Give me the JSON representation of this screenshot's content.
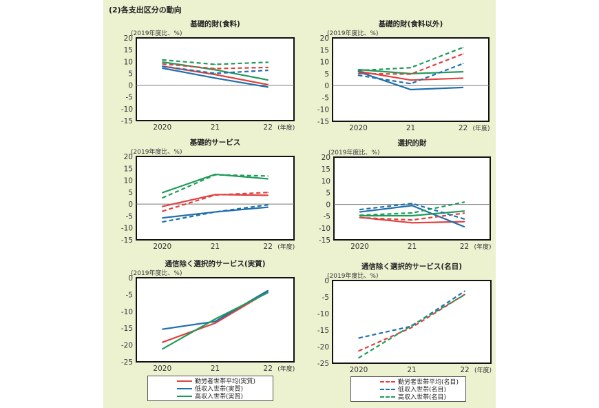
{
  "section_title": "(2)各支出区分の動向",
  "chart_data": [
    {
      "type": "line",
      "title": "基礎的財(食料)",
      "ylabel": "(2019年度比、%)",
      "xlabel": "(年度)",
      "categories": [
        "2020",
        "21",
        "22"
      ],
      "ylim": [
        -15,
        20
      ],
      "yticks": [
        "20",
        "15",
        "10",
        "5",
        "0",
        "-5",
        "-10",
        "-15"
      ],
      "series": [
        {
          "name": "勤労者世帯平均(実質)",
          "color": "#e0423f",
          "dashed": false,
          "values": [
            8.0,
            4.5,
            0.2
          ]
        },
        {
          "name": "低収入世帯(実質)",
          "color": "#1f6fae",
          "dashed": false,
          "values": [
            7.2,
            3.0,
            -0.8
          ]
        },
        {
          "name": "高収入世帯(実質)",
          "color": "#1e9b5a",
          "dashed": false,
          "values": [
            9.8,
            6.5,
            2.2
          ]
        },
        {
          "name": "勤労者世帯平均(名目)",
          "color": "#e0423f",
          "dashed": true,
          "values": [
            9.0,
            7.0,
            7.5
          ]
        },
        {
          "name": "低収入世帯(名目)",
          "color": "#1f6fae",
          "dashed": true,
          "values": [
            8.0,
            5.0,
            6.3
          ]
        },
        {
          "name": "高収入世帯(名目)",
          "color": "#1e9b5a",
          "dashed": true,
          "values": [
            10.7,
            8.8,
            9.7
          ]
        }
      ]
    },
    {
      "type": "line",
      "title": "基礎的財(食料以外)",
      "ylabel": "(2019年度比、%)",
      "xlabel": "(年度)",
      "categories": [
        "2020",
        "21",
        "22"
      ],
      "ylim": [
        -15,
        20
      ],
      "yticks": [
        "20",
        "15",
        "10",
        "5",
        "0",
        "-5",
        "-10",
        "-15"
      ],
      "series": [
        {
          "name": "勤労者世帯平均(実質)",
          "color": "#e0423f",
          "dashed": false,
          "values": [
            6.0,
            2.3,
            3.1
          ]
        },
        {
          "name": "低収入世帯(実質)",
          "color": "#1f6fae",
          "dashed": false,
          "values": [
            5.8,
            -1.7,
            -0.8
          ]
        },
        {
          "name": "高収入世帯(実質)",
          "color": "#1e9b5a",
          "dashed": false,
          "values": [
            6.7,
            5.0,
            5.8
          ]
        },
        {
          "name": "勤労者世帯平均(名目)",
          "color": "#e0423f",
          "dashed": true,
          "values": [
            5.0,
            4.8,
            13.3
          ]
        },
        {
          "name": "低収入世帯(名目)",
          "color": "#1f6fae",
          "dashed": true,
          "values": [
            4.3,
            0.8,
            9.2
          ]
        },
        {
          "name": "高収入世帯(名目)",
          "color": "#1e9b5a",
          "dashed": true,
          "values": [
            6.3,
            7.5,
            16.0
          ]
        }
      ]
    },
    {
      "type": "line",
      "title": "基礎的サービス",
      "ylabel": "(2019年度比、%)",
      "xlabel": "(年度)",
      "categories": [
        "2020",
        "21",
        "22"
      ],
      "ylim": [
        -15,
        20
      ],
      "yticks": [
        "20",
        "15",
        "10",
        "5",
        "0",
        "-5",
        "-10",
        "-15"
      ],
      "series": [
        {
          "name": "勤労者世帯平均(実質)",
          "color": "#e0423f",
          "dashed": false,
          "values": [
            -1.0,
            4.0,
            3.7
          ]
        },
        {
          "name": "低収入世帯(実質)",
          "color": "#1f6fae",
          "dashed": false,
          "values": [
            -5.8,
            -3.3,
            -1.3
          ]
        },
        {
          "name": "高収入世帯(実質)",
          "color": "#1e9b5a",
          "dashed": false,
          "values": [
            4.8,
            12.5,
            10.6
          ]
        },
        {
          "name": "勤労者世帯平均(名目)",
          "color": "#e0423f",
          "dashed": true,
          "values": [
            -3.0,
            3.8,
            4.9
          ]
        },
        {
          "name": "低収入世帯(名目)",
          "color": "#1f6fae",
          "dashed": true,
          "values": [
            -7.5,
            -3.3,
            -0.3
          ]
        },
        {
          "name": "高収入世帯(名目)",
          "color": "#1e9b5a",
          "dashed": true,
          "values": [
            2.6,
            12.3,
            11.8
          ]
        }
      ]
    },
    {
      "type": "line",
      "title": "選択的財",
      "ylabel": "(2019年度比、%)",
      "xlabel": "(年度)",
      "categories": [
        "2020",
        "21",
        "22"
      ],
      "ylim": [
        -15,
        20
      ],
      "yticks": [
        "20",
        "15",
        "10",
        "5",
        "0",
        "-5",
        "-10",
        "-15"
      ],
      "series": [
        {
          "name": "勤労者世帯平均(実質)",
          "color": "#e0423f",
          "dashed": false,
          "values": [
            -5.5,
            -7.8,
            -7.3
          ]
        },
        {
          "name": "低収入世帯(実質)",
          "color": "#1f6fae",
          "dashed": false,
          "values": [
            -3.2,
            -0.5,
            -9.5
          ]
        },
        {
          "name": "高収入世帯(実質)",
          "color": "#1e9b5a",
          "dashed": false,
          "values": [
            -4.8,
            -4.8,
            -2.8
          ]
        },
        {
          "name": "勤労者世帯平均(名目)",
          "color": "#e0423f",
          "dashed": true,
          "values": [
            -5.6,
            -6.6,
            -3.7
          ]
        },
        {
          "name": "低収入世帯(名目)",
          "color": "#1f6fae",
          "dashed": true,
          "values": [
            -2.2,
            0.4,
            -6.2
          ]
        },
        {
          "name": "高収入世帯(名目)",
          "color": "#1e9b5a",
          "dashed": true,
          "values": [
            -4.6,
            -3.6,
            1.0
          ]
        }
      ]
    },
    {
      "type": "line",
      "title": "通信除く選択的サービス(実質)",
      "ylabel": "(2019年度比、%)",
      "xlabel": "(年度)",
      "categories": [
        "2020",
        "21",
        "22"
      ],
      "ylim": [
        -25,
        0
      ],
      "yticks": [
        "0",
        "-5",
        "-10",
        "-15",
        "-20",
        "-25"
      ],
      "legend": "bottom",
      "series": [
        {
          "name": "勤労者世帯平均(実質)",
          "color": "#e0423f",
          "dashed": false,
          "values": [
            -19.2,
            -13.5,
            -4.2
          ]
        },
        {
          "name": "低収入世帯(実質)",
          "color": "#1f6fae",
          "dashed": false,
          "values": [
            -15.3,
            -13.0,
            -3.8
          ]
        },
        {
          "name": "高収入世帯(実質)",
          "color": "#1e9b5a",
          "dashed": false,
          "values": [
            -21.2,
            -12.3,
            -4.4
          ]
        }
      ]
    },
    {
      "type": "line",
      "title": "通信除く選択的サービス(名目)",
      "ylabel": "(2019年度比、%)",
      "xlabel": "(年度)",
      "categories": [
        "2020",
        "21",
        "22"
      ],
      "ylim": [
        -25,
        0
      ],
      "yticks": [
        "0",
        "-5",
        "-10",
        "-15",
        "-20",
        "-25"
      ],
      "legend": "bottom",
      "series": [
        {
          "name": "勤労者世帯平均(名目)",
          "color": "#e0423f",
          "dashed": true,
          "values": [
            -21.3,
            -14.2,
            -4.2
          ]
        },
        {
          "name": "低収入世帯(名目)",
          "color": "#1f6fae",
          "dashed": true,
          "values": [
            -17.4,
            -13.8,
            -3.2
          ]
        },
        {
          "name": "高収入世帯(名目)",
          "color": "#1e9b5a",
          "dashed": true,
          "values": [
            -23.4,
            -13.6,
            -4.3
          ]
        }
      ]
    }
  ]
}
